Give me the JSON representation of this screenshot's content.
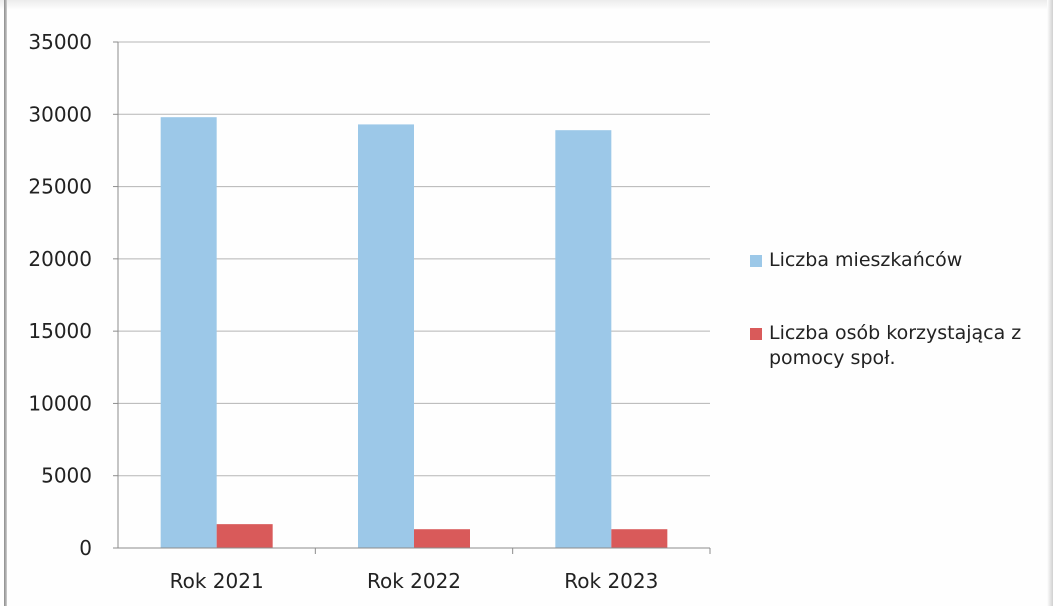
{
  "chart_data": {
    "type": "bar",
    "title": "",
    "xlabel": "",
    "ylabel": "",
    "categories": [
      "Rok 2021",
      "Rok 2022",
      "Rok 2023"
    ],
    "series": [
      {
        "name": "Liczba mieszkańców",
        "color": "#9cc8e8",
        "values": [
          29800,
          29300,
          28900
        ]
      },
      {
        "name": "Liczba osób korzystająca z pomocy społ.",
        "color": "#d95a5a",
        "values": [
          1650,
          1300,
          1300
        ]
      }
    ],
    "yticks": [
      "0",
      "5000",
      "10000",
      "15000",
      "20000",
      "25000",
      "30000",
      "35000"
    ],
    "ylim": [
      0,
      35000
    ],
    "grid": true,
    "legend_position": "right"
  }
}
